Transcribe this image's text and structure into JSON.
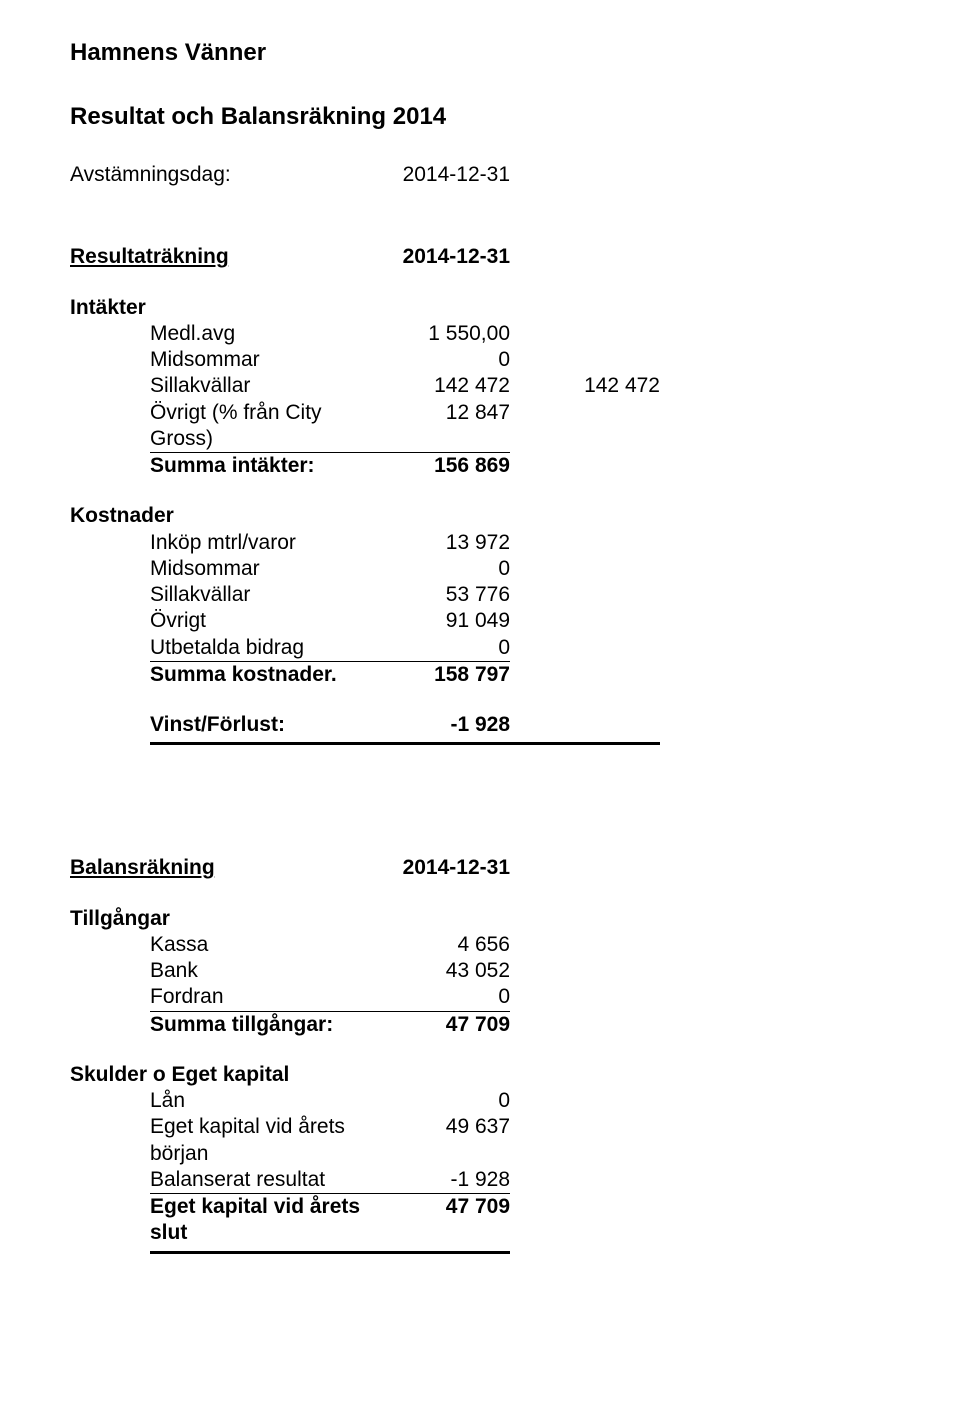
{
  "org": "Hamnens Vänner",
  "report_title": "Resultat och Balansräkning 2014",
  "avst_label": "Avstämningsdag:",
  "avst_date": "2014-12-31",
  "resultat": {
    "heading": "Resultaträkning",
    "date": "2014-12-31",
    "intakter_heading": "Intäkter",
    "intakter": [
      {
        "label": "Medl.avg",
        "val": "1 550,00"
      },
      {
        "label": "Midsommar",
        "val": "0"
      },
      {
        "label": "Sillakvällar",
        "val": "142 472",
        "val2": "142 472"
      },
      {
        "label": "Övrigt (% från City Gross)",
        "val": "12 847"
      }
    ],
    "intakter_sum_label": "Summa intäkter:",
    "intakter_sum": "156 869",
    "kostnader_heading": "Kostnader",
    "kostnader": [
      {
        "label": "Inköp mtrl/varor",
        "val": "13 972"
      },
      {
        "label": "Midsommar",
        "val": "0"
      },
      {
        "label": "Sillakvällar",
        "val": "53 776"
      },
      {
        "label": "Övrigt",
        "val": "91 049"
      },
      {
        "label": "Utbetalda bidrag",
        "val": "0"
      }
    ],
    "kostnader_sum_label": "Summa kostnader.",
    "kostnader_sum": "158 797",
    "vinst_label": "Vinst/Förlust:",
    "vinst_val": "-1 928"
  },
  "balans": {
    "heading": "Balansräkning",
    "date": "2014-12-31",
    "tillg_heading": "Tillgångar",
    "tillg": [
      {
        "label": "Kassa",
        "val": "4 656"
      },
      {
        "label": "Bank",
        "val": "43 052"
      },
      {
        "label": "Fordran",
        "val": "0"
      }
    ],
    "tillg_sum_label": "Summa tillgångar:",
    "tillg_sum": "47 709",
    "skuld_heading": "Skulder o Eget kapital",
    "skuld": [
      {
        "label": "Lån",
        "val": "0"
      },
      {
        "label": "Eget kapital vid årets början",
        "val": "49 637"
      },
      {
        "label": "Balanserat resultat",
        "val": "-1 928"
      }
    ],
    "skuld_sum_label": "Eget kapital vid årets slut",
    "skuld_sum": "47 709"
  }
}
